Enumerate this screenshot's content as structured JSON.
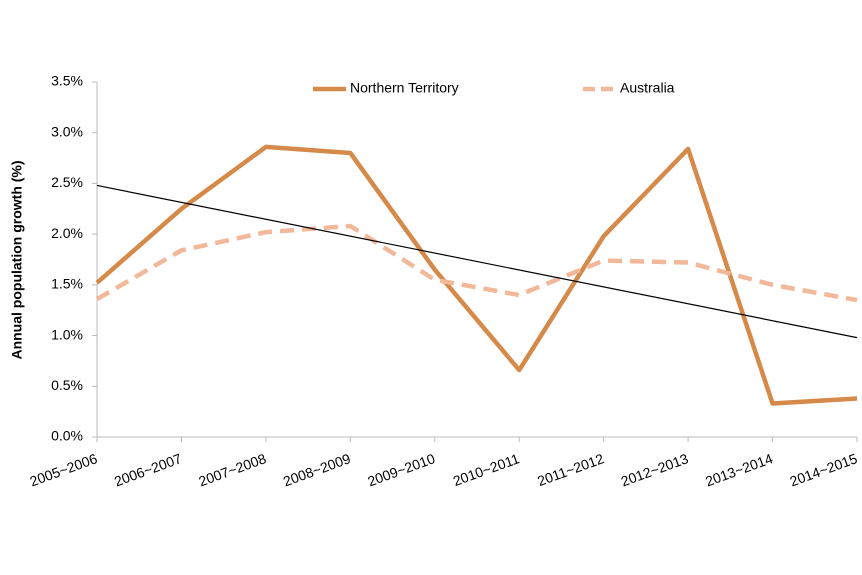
{
  "chart_data": {
    "type": "line",
    "y_label": "Annual population growth (%)",
    "categories": [
      "2005~2006",
      "2006~2007",
      "2007~2008",
      "2008~2009",
      "2009~2010",
      "2010~2011",
      "2011~2012",
      "2012~2013",
      "2013~2014",
      "2014~2015"
    ],
    "series": [
      {
        "name": "Northern Territory",
        "color": "#d58a4a",
        "dashed": false,
        "values": [
          1.52,
          2.25,
          2.86,
          2.8,
          1.65,
          0.66,
          1.98,
          2.84,
          0.33,
          0.38
        ]
      },
      {
        "name": "Australia",
        "color": "#f1b899",
        "dashed": true,
        "values": [
          1.36,
          1.84,
          2.02,
          2.08,
          1.55,
          1.4,
          1.74,
          1.72,
          1.5,
          1.35
        ]
      }
    ],
    "trend_line": {
      "color": "#000000",
      "values": [
        2.48,
        0.98
      ]
    },
    "ylim": [
      0,
      3.5
    ],
    "yticks": [
      {
        "value": 0,
        "label": "0.0%"
      },
      {
        "value": 0.5,
        "label": "0.5%"
      },
      {
        "value": 1,
        "label": "1.0%"
      },
      {
        "value": 1.5,
        "label": "1.5%"
      },
      {
        "value": 2,
        "label": "2.0%"
      },
      {
        "value": 2.5,
        "label": "2.5%"
      },
      {
        "value": 3,
        "label": "3.0%"
      },
      {
        "value": 3.5,
        "label": "3.5%"
      }
    ],
    "grid": false,
    "legend": "top"
  }
}
